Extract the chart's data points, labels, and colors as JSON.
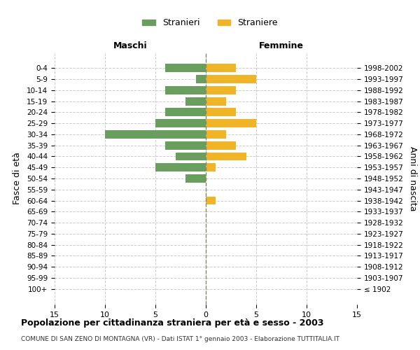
{
  "age_groups": [
    "100+",
    "95-99",
    "90-94",
    "85-89",
    "80-84",
    "75-79",
    "70-74",
    "65-69",
    "60-64",
    "55-59",
    "50-54",
    "45-49",
    "40-44",
    "35-39",
    "30-34",
    "25-29",
    "20-24",
    "15-19",
    "10-14",
    "5-9",
    "0-4"
  ],
  "birth_years": [
    "≤ 1902",
    "1903-1907",
    "1908-1912",
    "1913-1917",
    "1918-1922",
    "1923-1927",
    "1928-1932",
    "1933-1937",
    "1938-1942",
    "1943-1947",
    "1948-1952",
    "1953-1957",
    "1958-1962",
    "1963-1967",
    "1968-1972",
    "1973-1977",
    "1978-1982",
    "1983-1987",
    "1988-1992",
    "1993-1997",
    "1998-2002"
  ],
  "males": [
    0,
    0,
    0,
    0,
    0,
    0,
    0,
    0,
    0,
    0,
    2,
    5,
    3,
    4,
    10,
    5,
    4,
    2,
    4,
    1,
    4
  ],
  "females": [
    0,
    0,
    0,
    0,
    0,
    0,
    0,
    0,
    1,
    0,
    0,
    1,
    4,
    3,
    2,
    5,
    3,
    2,
    3,
    5,
    3
  ],
  "male_color": "#6a9e5e",
  "female_color": "#f0b429",
  "grid_color": "#cccccc",
  "center_line_color": "#888866",
  "title": "Popolazione per cittadinanza straniera per età e sesso - 2003",
  "subtitle": "COMUNE DI SAN ZENO DI MONTAGNA (VR) - Dati ISTAT 1° gennaio 2003 - Elaborazione TUTTITALIA.IT",
  "ylabel_left": "Fasce di età",
  "ylabel_right": "Anni di nascita",
  "legend_male": "Stranieri",
  "legend_female": "Straniere",
  "xlim": 15,
  "background_color": "#ffffff"
}
